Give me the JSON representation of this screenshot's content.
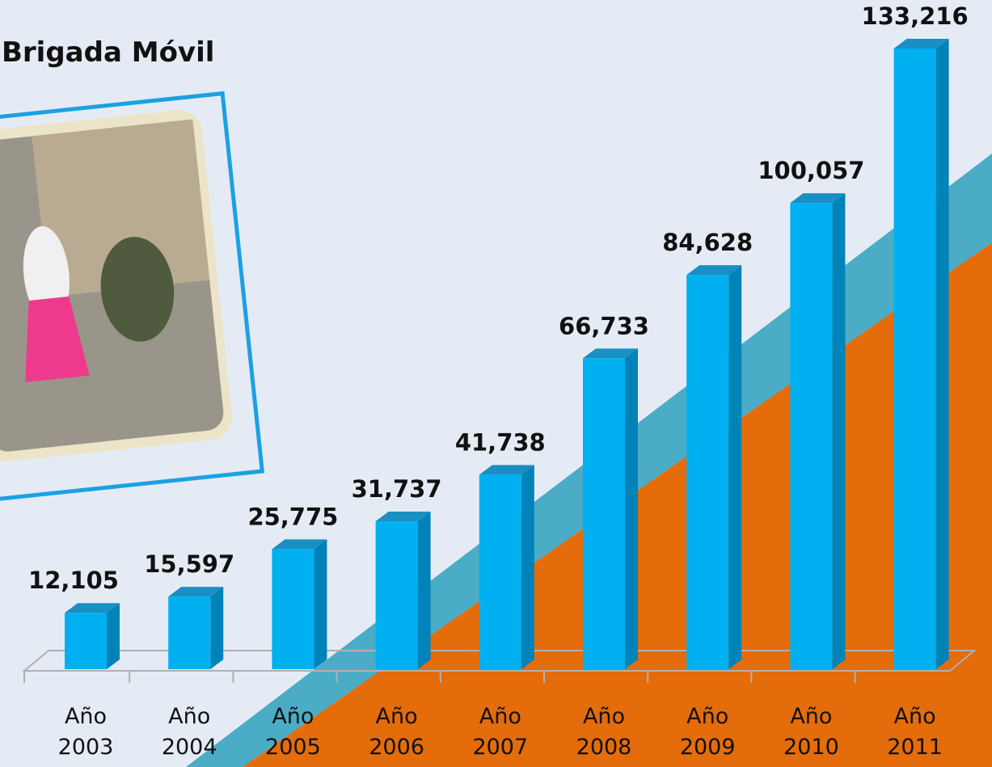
{
  "chart_data": {
    "type": "bar3d",
    "title": "Brigada Móvil",
    "categories": [
      "Año 2003",
      "Año 2004",
      "Año 2005",
      "Año 2006",
      "Año 2007",
      "Año 2008",
      "Año 2009",
      "Año 2010",
      "Año 2011"
    ],
    "values": [
      12105,
      15597,
      25775,
      31737,
      41738,
      66733,
      84628,
      100057,
      133216
    ],
    "value_labels": [
      "12,105",
      "15,597",
      "25,775",
      "31,737",
      "41,738",
      "66,733",
      "84,628",
      "100,057",
      "133,216"
    ],
    "color": "#00b0f0"
  }
}
